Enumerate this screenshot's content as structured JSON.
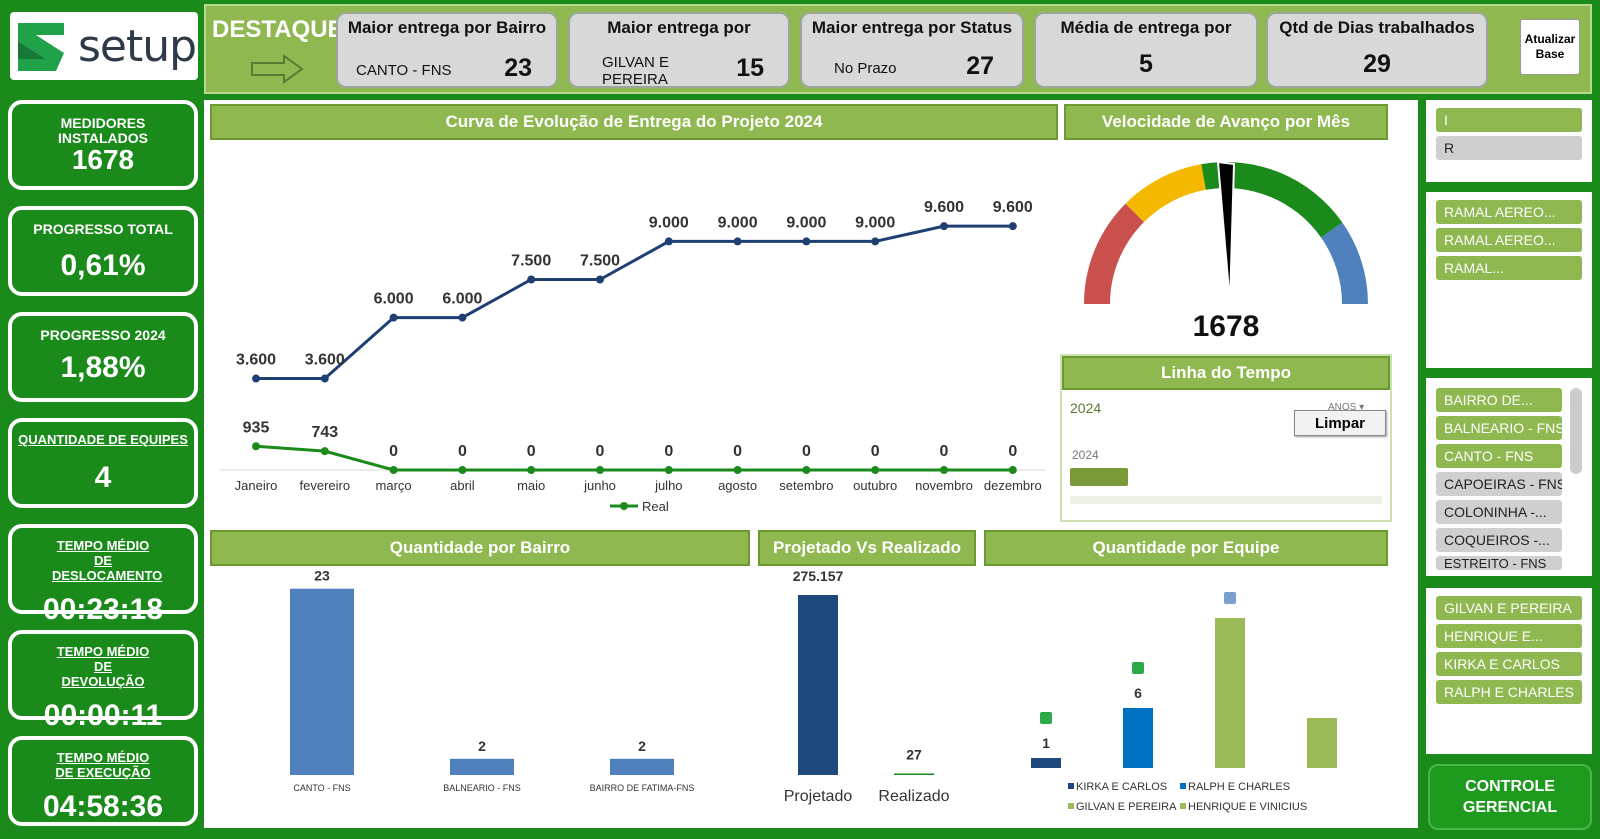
{
  "brand": {
    "name": "setup"
  },
  "top": {
    "destaque": "DESTAQUE",
    "kpis": [
      {
        "title": "Maior entrega por Bairro",
        "label": "CANTO - FNS",
        "value": "23"
      },
      {
        "title": "Maior entrega por",
        "label": "GILVAN E PEREIRA",
        "value": "15"
      },
      {
        "title": "Maior entrega por Status",
        "label": "No Prazo",
        "value": "27"
      },
      {
        "title": "Média de entrega por",
        "label": "",
        "value": "5"
      },
      {
        "title": "Qtd de Dias trabalhados",
        "label": "",
        "value": "29"
      }
    ],
    "refresh": "Atualizar Base"
  },
  "left": [
    {
      "title": "MEDIDORES INSTALADOS",
      "value": "1678"
    },
    {
      "title": "PROGRESSO TOTAL",
      "value": "0,61%"
    },
    {
      "title": "PROGRESSO 2024",
      "value": "1,88%"
    },
    {
      "title": "QUANTIDADE DE EQUIPES",
      "value": "4"
    },
    {
      "title": "TEMPO MÉDIO DE DESLOCAMENTO",
      "value": "00:23:18"
    },
    {
      "title": "TEMPO MÉDIO DE DEVOLUÇÃO",
      "value": "00:00:11"
    },
    {
      "title": "TEMPO MÉDIO DE EXECUÇÃO",
      "value": "04:58:36"
    }
  ],
  "headers": {
    "curve": "Curva de Evolução de Entrega do Projeto 2024",
    "speed": "Velocidade de Avanço por Mês",
    "timeline": "Linha do Tempo",
    "bairro": "Quantidade por Bairro",
    "proj": "Projetado Vs Realizado",
    "equipe": "Quantidade por Equipe"
  },
  "gauge": {
    "value": "1678",
    "colors": [
      "#c9504d",
      "#f5b800",
      "#1a8a1a",
      "#4f81bd"
    ]
  },
  "timeline": {
    "year": "2024",
    "anos": "ANOS",
    "clear": "Limpar",
    "bar_year": "2024"
  },
  "slicers": {
    "status": [
      "I",
      "R"
    ],
    "tipo": [
      "RAMAL AEREO...",
      "RAMAL AEREO...",
      "RAMAL..."
    ],
    "bairro": [
      "BAIRRO DE...",
      "BALNEARIO - FNS",
      "CANTO - FNS",
      "CAPOEIRAS - FNS",
      "COLONINHA -...",
      "COQUEIROS -...",
      "ESTREITO - FNS"
    ],
    "equipe": [
      "GILVAN E PEREIRA",
      "HENRIQUE E...",
      "KIRKA E CARLOS",
      "RALPH E CHARLES"
    ]
  },
  "controle": "CONTROLE GERENCIAL",
  "chart_data": [
    {
      "type": "line",
      "title": "Curva de Evolução de Entrega do Projeto 2024",
      "categories": [
        "Janeiro",
        "fevereiro",
        "março",
        "abril",
        "maio",
        "junho",
        "julho",
        "agosto",
        "setembro",
        "outubro",
        "novembro",
        "dezembro"
      ],
      "series": [
        {
          "name": "",
          "values": [
            3600,
            3600,
            6000,
            6000,
            7500,
            7500,
            9000,
            9000,
            9000,
            9000,
            9600,
            9600
          ],
          "labels": [
            "3.600",
            "3.600",
            "6.000",
            "6.000",
            "7.500",
            "7.500",
            "9.000",
            "9.000",
            "9.000",
            "9.000",
            "9.600",
            "9.600"
          ],
          "color": "#1f3f73"
        },
        {
          "name": "Real",
          "values": [
            935,
            743,
            0,
            0,
            0,
            0,
            0,
            0,
            0,
            0,
            0,
            0
          ],
          "labels": [
            "935",
            "743",
            "0",
            "0",
            "0",
            "0",
            "0",
            "0",
            "0",
            "0",
            "0",
            "0"
          ],
          "color": "#1a8a1a"
        }
      ]
    },
    {
      "type": "bar",
      "title": "Quantidade por Bairro",
      "categories": [
        "CANTO - FNS",
        "BALNEARIO - FNS",
        "BAIRRO DE FATIMA-FNS"
      ],
      "values": [
        23,
        2,
        2
      ],
      "color": "#4f81bd"
    },
    {
      "type": "bar",
      "title": "Projetado Vs Realizado",
      "categories": [
        "Projetado",
        "Realizado"
      ],
      "values": [
        275157,
        27
      ],
      "labels": [
        "275.157",
        "27"
      ],
      "colors": [
        "#1f497d",
        "#1a8a1a"
      ]
    },
    {
      "type": "bar",
      "title": "Quantidade por Equipe",
      "series": [
        {
          "name": "KIRKA E CARLOS",
          "value": 1,
          "label": "1",
          "color": "#1f497d"
        },
        {
          "name": "RALPH E CHARLES",
          "value": 6,
          "label": "6",
          "color": "#0070c0"
        },
        {
          "name": "GILVAN E PEREIRA",
          "value": 15,
          "label": "",
          "color": "#9bbb59"
        },
        {
          "name": "HENRIQUE E VINICIUS",
          "value": 5,
          "label": "",
          "color": "#9bbb59"
        }
      ]
    }
  ]
}
